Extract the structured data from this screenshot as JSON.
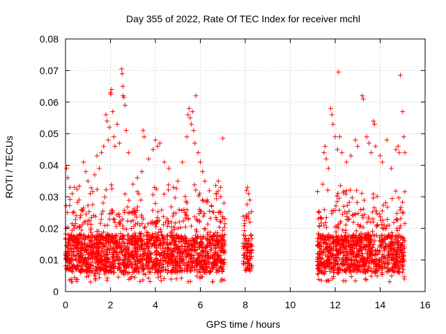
{
  "chart_data": {
    "type": "scatter",
    "title": "Day 355 of 2022, Rate Of TEC Index for receiver mchl",
    "xlabel": "GPS time / hours",
    "ylabel": "ROTI / TECUs",
    "xlim": [
      0,
      16
    ],
    "ylim": [
      0,
      0.08
    ],
    "xticks": [
      0,
      2,
      4,
      6,
      8,
      10,
      12,
      14,
      16
    ],
    "xtick_labels": [
      "0",
      "2",
      "4",
      "6",
      "8",
      "10",
      "12",
      "14",
      "16"
    ],
    "yticks": [
      0,
      0.01,
      0.02,
      0.03,
      0.04,
      0.05,
      0.06,
      0.07,
      0.08
    ],
    "ytick_labels": [
      "0",
      "0.01",
      "0.02",
      "0.03",
      "0.04",
      "0.05",
      "0.06",
      "0.07",
      "0.08"
    ],
    "grid": true,
    "marker": "+",
    "series_color": "#ff0000",
    "series": [
      {
        "name": "ROTI",
        "points": [
          [
            0.05,
            0.039
          ],
          [
            0.1,
            0.036
          ],
          [
            0.2,
            0.033
          ],
          [
            0.3,
            0.031
          ],
          [
            0.4,
            0.033
          ],
          [
            0.6,
            0.029
          ],
          [
            0.8,
            0.041
          ],
          [
            0.9,
            0.038
          ],
          [
            1.0,
            0.035
          ],
          [
            1.1,
            0.031
          ],
          [
            1.3,
            0.037
          ],
          [
            1.4,
            0.043
          ],
          [
            1.5,
            0.039
          ],
          [
            1.6,
            0.044
          ],
          [
            1.7,
            0.046
          ],
          [
            1.8,
            0.056
          ],
          [
            1.85,
            0.054
          ],
          [
            1.9,
            0.048
          ],
          [
            1.95,
            0.052
          ],
          [
            2.0,
            0.063
          ],
          [
            2.02,
            0.0625
          ],
          [
            2.05,
            0.064
          ],
          [
            2.1,
            0.057
          ],
          [
            2.15,
            0.049
          ],
          [
            2.2,
            0.046
          ],
          [
            2.3,
            0.053
          ],
          [
            2.4,
            0.047
          ],
          [
            2.5,
            0.0705
          ],
          [
            2.52,
            0.069
          ],
          [
            2.55,
            0.065
          ],
          [
            2.56,
            0.062
          ],
          [
            2.6,
            0.0615
          ],
          [
            2.65,
            0.059
          ],
          [
            2.7,
            0.051
          ],
          [
            2.8,
            0.044
          ],
          [
            3.0,
            0.034
          ],
          [
            3.2,
            0.036
          ],
          [
            3.4,
            0.038
          ],
          [
            3.45,
            0.051
          ],
          [
            3.5,
            0.049
          ],
          [
            3.7,
            0.042
          ],
          [
            3.9,
            0.045
          ],
          [
            4.0,
            0.048
          ],
          [
            4.1,
            0.046
          ],
          [
            4.2,
            0.047
          ],
          [
            4.4,
            0.041
          ],
          [
            4.6,
            0.039
          ],
          [
            4.8,
            0.033
          ],
          [
            5.0,
            0.035
          ],
          [
            5.2,
            0.041
          ],
          [
            5.4,
            0.049
          ],
          [
            5.45,
            0.056
          ],
          [
            5.5,
            0.058
          ],
          [
            5.55,
            0.055
          ],
          [
            5.6,
            0.053
          ],
          [
            5.65,
            0.057
          ],
          [
            5.7,
            0.051
          ],
          [
            5.75,
            0.047
          ],
          [
            5.8,
            0.062
          ],
          [
            5.9,
            0.044
          ],
          [
            6.0,
            0.041
          ],
          [
            6.1,
            0.038
          ],
          [
            6.2,
            0.035
          ],
          [
            6.3,
            0.029
          ],
          [
            6.5,
            0.027
          ],
          [
            6.7,
            0.031
          ],
          [
            6.8,
            0.035
          ],
          [
            6.9,
            0.033
          ],
          [
            7.0,
            0.0485
          ],
          [
            7.05,
            0.028
          ],
          [
            8.05,
            0.032
          ],
          [
            8.1,
            0.033
          ],
          [
            8.15,
            0.031
          ],
          [
            8.2,
            0.029
          ],
          [
            11.3,
            0.015
          ],
          [
            11.5,
            0.044
          ],
          [
            11.55,
            0.046
          ],
          [
            11.6,
            0.042
          ],
          [
            11.7,
            0.039
          ],
          [
            11.8,
            0.058
          ],
          [
            11.85,
            0.056
          ],
          [
            11.9,
            0.053
          ],
          [
            12.0,
            0.049
          ],
          [
            12.1,
            0.045
          ],
          [
            12.15,
            0.0695
          ],
          [
            12.2,
            0.049
          ],
          [
            12.3,
            0.044
          ],
          [
            12.5,
            0.041
          ],
          [
            12.7,
            0.043
          ],
          [
            12.9,
            0.048
          ],
          [
            13.0,
            0.046
          ],
          [
            13.2,
            0.062
          ],
          [
            13.25,
            0.061
          ],
          [
            13.4,
            0.049
          ],
          [
            13.5,
            0.047
          ],
          [
            13.6,
            0.044
          ],
          [
            13.7,
            0.054
          ],
          [
            13.75,
            0.053
          ],
          [
            13.8,
            0.046
          ],
          [
            14.0,
            0.043
          ],
          [
            14.1,
            0.041
          ],
          [
            14.3,
            0.048
          ],
          [
            14.5,
            0.039
          ],
          [
            14.7,
            0.045
          ],
          [
            14.8,
            0.046
          ],
          [
            14.85,
            0.044
          ],
          [
            14.9,
            0.0685
          ],
          [
            15.0,
            0.057
          ],
          [
            15.05,
            0.049
          ],
          [
            15.1,
            0.044
          ]
        ]
      }
    ],
    "data_segments": [
      {
        "x_start": 0.0,
        "x_end": 7.1,
        "y_min": 0.003,
        "y_max": 0.026,
        "density": "dense"
      },
      {
        "x_start": 7.9,
        "x_end": 8.3,
        "y_min": 0.004,
        "y_max": 0.026,
        "density": "medium"
      },
      {
        "x_start": 11.2,
        "x_end": 15.1,
        "y_min": 0.003,
        "y_max": 0.026,
        "density": "dense"
      }
    ]
  }
}
